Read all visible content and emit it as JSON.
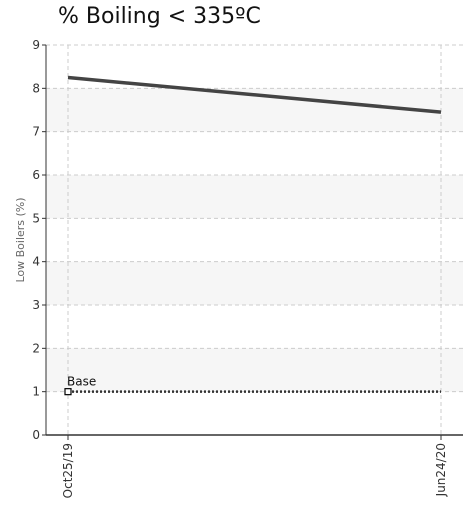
{
  "chart_data": {
    "type": "line",
    "title": "% Boiling < 335ºC",
    "ylabel": "Low Boilers (%)",
    "xlabel": "",
    "ylim": [
      0,
      9
    ],
    "yticks": [
      "0",
      "1",
      "2",
      "3",
      "4",
      "5",
      "6",
      "7",
      "8",
      "9"
    ],
    "xticks": [
      "Oct25/19",
      "Jun24/20"
    ],
    "grid": true,
    "series": [
      {
        "x": [
          "Oct25/19",
          "Jun24/20"
        ],
        "values": [
          8.25,
          7.45
        ],
        "color": "#444444",
        "style": "solid"
      },
      {
        "name": "Base",
        "x": [
          "Oct25/19",
          "Jun24/20"
        ],
        "values": [
          1.0,
          1.0
        ],
        "color": "#333333",
        "style": "dotted",
        "marker": "open-square-at-start"
      }
    ]
  }
}
